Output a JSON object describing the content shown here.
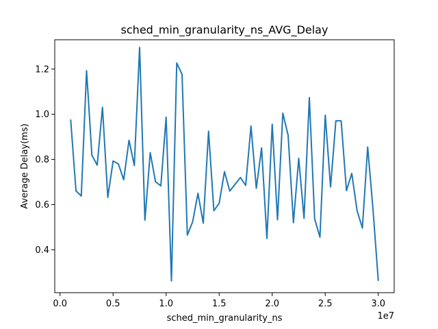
{
  "chart_data": {
    "type": "line",
    "title": "sched_min_granularity_ns_AVG_Delay",
    "xlabel": "sched_min_granularity_ns",
    "ylabel": "Average Delay(ms)",
    "x_offset_text": "1e7",
    "xlim": [
      -0.05,
      3.15
    ],
    "ylim": [
      0.21,
      1.33
    ],
    "x_ticks": [
      0.0,
      0.5,
      1.0,
      1.5,
      2.0,
      2.5,
      3.0
    ],
    "x_tick_labels": [
      "0.0",
      "0.5",
      "1.0",
      "1.5",
      "2.0",
      "2.5",
      "3.0"
    ],
    "y_ticks": [
      0.4,
      0.6,
      0.8,
      1.0,
      1.2
    ],
    "y_tick_labels": [
      "0.4",
      "0.6",
      "0.8",
      "1.0",
      "1.2"
    ],
    "grid": false,
    "series": [
      {
        "name": "AVG_Delay",
        "color": "#1f77b4",
        "x": [
          0.1,
          0.15,
          0.2,
          0.25,
          0.3,
          0.35,
          0.4,
          0.45,
          0.5,
          0.55,
          0.6,
          0.65,
          0.7,
          0.75,
          0.8,
          0.85,
          0.9,
          0.95,
          1.0,
          1.05,
          1.1,
          1.15,
          1.2,
          1.25,
          1.3,
          1.35,
          1.4,
          1.45,
          1.5,
          1.55,
          1.6,
          1.65,
          1.7,
          1.75,
          1.8,
          1.85,
          1.9,
          1.95,
          2.0,
          2.05,
          2.1,
          2.15,
          2.2,
          2.25,
          2.3,
          2.35,
          2.4,
          2.45,
          2.5,
          2.55,
          2.6,
          2.65,
          2.7,
          2.75,
          2.8,
          2.85,
          2.9,
          2.95,
          3.0
        ],
        "y": [
          0.977,
          0.661,
          0.638,
          1.193,
          0.819,
          0.775,
          1.031,
          0.632,
          0.793,
          0.78,
          0.71,
          0.885,
          0.773,
          1.296,
          0.531,
          0.83,
          0.701,
          0.683,
          0.987,
          0.262,
          1.227,
          1.177,
          0.465,
          0.524,
          0.65,
          0.518,
          0.925,
          0.573,
          0.606,
          0.746,
          0.66,
          0.69,
          0.72,
          0.685,
          0.948,
          0.672,
          0.851,
          0.45,
          0.956,
          0.533,
          1.005,
          0.907,
          0.52,
          0.805,
          0.539,
          1.074,
          0.537,
          0.456,
          0.996,
          0.678,
          0.971,
          0.971,
          0.662,
          0.738,
          0.573,
          0.496,
          0.855,
          0.58,
          0.262
        ]
      }
    ]
  }
}
